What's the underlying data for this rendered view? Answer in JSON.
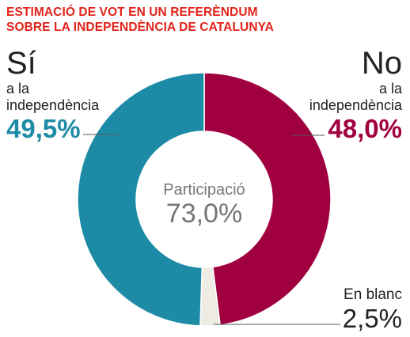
{
  "title_lines": [
    "ESTIMACIÓ DE VOT EN UN REFERÈNDUM",
    "SOBRE LA INDEPENDÈNCIA DE CATALUNYA"
  ],
  "left": {
    "heading": "Sí",
    "line1": "a la",
    "line2": "independència",
    "value": "49,5%"
  },
  "right": {
    "heading": "No",
    "line1": "a la",
    "line2": "independència",
    "value": "48,0%"
  },
  "blank": {
    "label": "En blanc",
    "value": "2,5%"
  },
  "center": {
    "label": "Participació",
    "value": "73,0%"
  },
  "colors": {
    "si": "#1e8ba6",
    "no": "#a0003f",
    "blank": "#eeebe2",
    "title": "#e2231a"
  },
  "chart_data": {
    "type": "pie",
    "title": "ESTIMACIÓ DE VOT EN UN REFERÈNDUM SOBRE LA INDEPENDÈNCIA DE CATALUNYA",
    "categories": [
      "No a la independència",
      "En blanc",
      "Sí a la independència"
    ],
    "values": [
      48.0,
      2.5,
      49.5
    ],
    "value_labels": [
      "48,0%",
      "2,5%",
      "49,5%"
    ],
    "donut": true,
    "center_text": [
      "Participació",
      "73,0%"
    ]
  }
}
